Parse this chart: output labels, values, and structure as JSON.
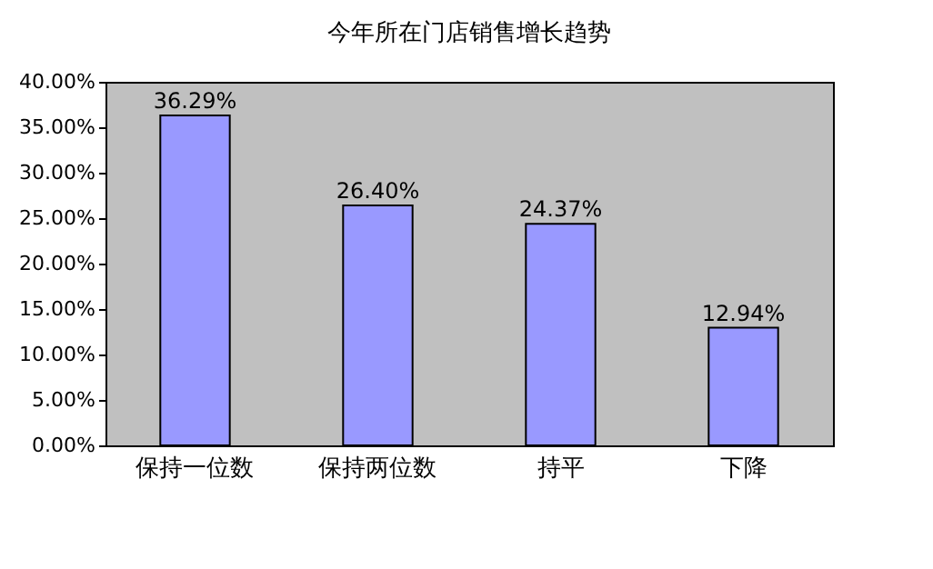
{
  "chart_data": {
    "type": "bar",
    "title": "今年所在门店销售增长趋势",
    "categories": [
      "保持一位数",
      "保持两位数",
      "持平",
      "下降"
    ],
    "values": [
      36.29,
      26.4,
      24.37,
      12.94
    ],
    "value_labels": [
      "36.29%",
      "26.40%",
      "24.37%",
      "12.94%"
    ],
    "color": "#9999ff",
    "ylim": [
      0,
      40
    ],
    "yticks": [
      {
        "value": 0,
        "label": "0.00%"
      },
      {
        "value": 5,
        "label": "5.00%"
      },
      {
        "value": 10,
        "label": "10.00%"
      },
      {
        "value": 15,
        "label": "15.00%"
      },
      {
        "value": 20,
        "label": "20.00%"
      },
      {
        "value": 25,
        "label": "25.00%"
      },
      {
        "value": 30,
        "label": "30.00%"
      },
      {
        "value": 35,
        "label": "35.00%"
      },
      {
        "value": 40,
        "label": "40.00%"
      }
    ],
    "grid": false
  }
}
